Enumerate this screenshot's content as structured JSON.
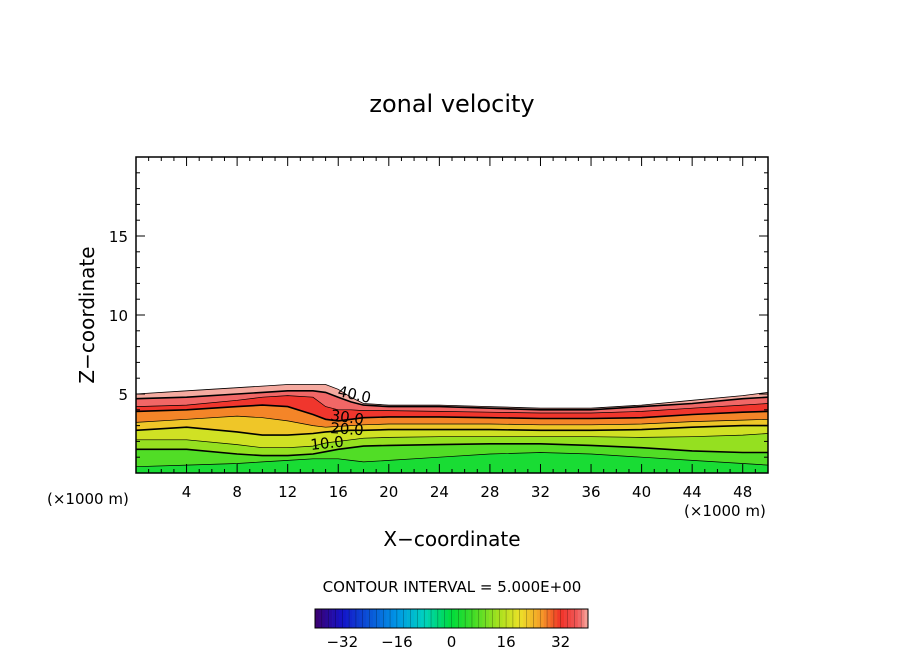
{
  "chart_data": {
    "type": "contour",
    "title": "zonal velocity",
    "xlabel": "X−coordinate",
    "ylabel": "Z−coordinate",
    "x_unit_label": "(×1000 m)",
    "y_unit_label": "(×1000 m)",
    "xlim": [
      0,
      50
    ],
    "ylim": [
      0,
      20
    ],
    "x_ticks": [
      4,
      8,
      12,
      16,
      20,
      24,
      28,
      32,
      36,
      40,
      44,
      48
    ],
    "y_ticks": [
      5,
      10,
      15
    ],
    "contour_interval_text": "CONTOUR INTERVAL =  5.000E+00",
    "contour_labels": [
      "40.0",
      "30.0",
      "20.0",
      "10.0"
    ],
    "colorbar": {
      "min": -40,
      "max": 40,
      "tick_values": [
        -32,
        -16,
        0,
        16,
        32
      ],
      "tick_labels": [
        "−32",
        "−16",
        "0",
        "16",
        "32"
      ]
    },
    "field": {
      "x": [
        0,
        4,
        8,
        10,
        12,
        14,
        15,
        16,
        17,
        18,
        20,
        24,
        28,
        32,
        36,
        40,
        44,
        48,
        50
      ],
      "top_height": [
        5.0,
        5.2,
        5.4,
        5.5,
        5.6,
        5.6,
        5.6,
        5.3,
        4.8,
        4.4,
        4.3,
        4.3,
        4.2,
        4.1,
        4.1,
        4.3,
        4.6,
        4.9,
        5.1
      ],
      "contours": [
        {
          "level": 40,
          "z": [
            4.7,
            4.8,
            5.0,
            5.1,
            5.2,
            5.2,
            5.1,
            4.8,
            4.5,
            4.3,
            4.2,
            4.2,
            4.1,
            4.0,
            4.0,
            4.2,
            4.4,
            4.7,
            4.8
          ]
        },
        {
          "level": 35,
          "z": [
            4.2,
            4.3,
            4.6,
            4.8,
            4.9,
            4.8,
            4.2,
            4.0,
            4.0,
            3.95,
            3.95,
            3.9,
            3.85,
            3.8,
            3.8,
            3.9,
            4.1,
            4.3,
            4.4
          ]
        },
        {
          "level": 30,
          "z": [
            3.9,
            4.0,
            4.2,
            4.3,
            4.2,
            3.7,
            3.4,
            3.3,
            3.4,
            3.5,
            3.55,
            3.55,
            3.5,
            3.45,
            3.45,
            3.5,
            3.7,
            3.85,
            3.9
          ]
        },
        {
          "level": 25,
          "z": [
            3.2,
            3.4,
            3.6,
            3.5,
            3.3,
            3.0,
            2.9,
            2.95,
            3.0,
            3.05,
            3.1,
            3.1,
            3.1,
            3.05,
            3.05,
            3.1,
            3.25,
            3.35,
            3.4
          ]
        },
        {
          "level": 20,
          "z": [
            2.7,
            2.9,
            2.6,
            2.4,
            2.4,
            2.5,
            2.6,
            2.65,
            2.7,
            2.7,
            2.75,
            2.75,
            2.75,
            2.7,
            2.7,
            2.75,
            2.9,
            3.0,
            3.0
          ]
        },
        {
          "level": 15,
          "z": [
            2.1,
            2.1,
            1.8,
            1.6,
            1.6,
            1.7,
            1.9,
            2.0,
            2.1,
            2.2,
            2.25,
            2.3,
            2.3,
            2.3,
            2.3,
            2.25,
            2.3,
            2.4,
            2.5
          ]
        },
        {
          "level": 10,
          "z": [
            1.5,
            1.5,
            1.2,
            1.1,
            1.1,
            1.2,
            1.35,
            1.5,
            1.6,
            1.7,
            1.75,
            1.8,
            1.85,
            1.85,
            1.75,
            1.6,
            1.4,
            1.3,
            1.3
          ]
        },
        {
          "level": 5,
          "z": [
            0.4,
            0.5,
            0.6,
            0.7,
            0.8,
            0.9,
            0.9,
            0.9,
            0.8,
            0.7,
            0.8,
            1.0,
            1.2,
            1.3,
            1.2,
            1.0,
            0.8,
            0.6,
            0.5
          ]
        }
      ]
    }
  }
}
